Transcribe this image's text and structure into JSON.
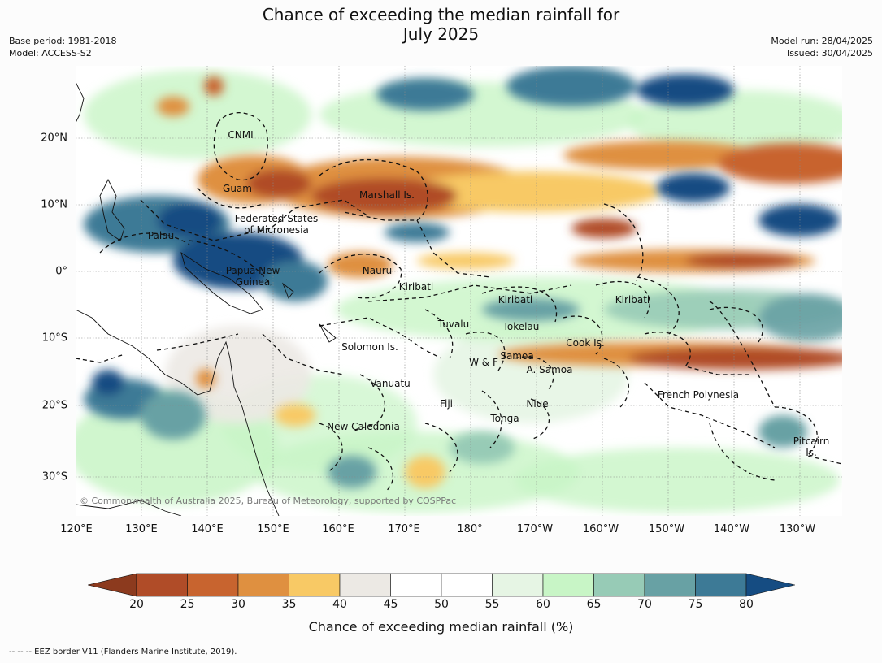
{
  "title_line1": "Chance of exceeding the median rainfall for",
  "title_line2": "July 2025",
  "base_period": "Base period: 1981-2018",
  "model": "Model: ACCESS-S2",
  "model_run": "Model run: 28/04/2025",
  "issued": "Issued: 30/04/2025",
  "copyright": "© Commonwealth of Australia 2025, Bureau of Meteorology, supported by COSPPac",
  "lon_ticks": [
    "120°E",
    "130°E",
    "140°E",
    "150°E",
    "160°E",
    "170°E",
    "180°",
    "170°W",
    "160°W",
    "150°W",
    "140°W",
    "130°W"
  ],
  "lat_ticks": [
    "20°N",
    "10°N",
    "0°",
    "10°S",
    "20°S",
    "30°S"
  ],
  "regions": [
    "CNMI",
    "Guam",
    "Marshall Is.",
    "Federated States\nof Micronesia",
    "Palau",
    "Papua New\nGuinea",
    "Nauru",
    "Kiribati",
    "Kiribati",
    "Kiribati",
    "Tuvalu",
    "Tokelau",
    "Cook Is.",
    "Solomon Is.",
    "Samoa",
    "W & F",
    "A. Samoa",
    "Vanuatu",
    "Fiji",
    "Niue",
    "French Polynesia",
    "Tonga",
    "New Caledonia",
    "Pitcairn\nIs."
  ],
  "colorbar": {
    "tick_labels": [
      "20",
      "25",
      "30",
      "35",
      "40",
      "45",
      "50",
      "55",
      "60",
      "65",
      "70",
      "75",
      "80"
    ],
    "colors": [
      "#8c3a1e",
      "#b04c28",
      "#c8642f",
      "#df9040",
      "#f8c965",
      "#ece9e4",
      "#ffffff",
      "#ffffff",
      "#e6f5e4",
      "#c8f5c6",
      "#97cbb6",
      "#68a1a4",
      "#3d7a96",
      "#154c82"
    ],
    "label": "Chance of exceeding median rainfall (%)"
  },
  "footer": "--  --  -- EEZ border V11 (Flanders Marine Institute, 2019)."
}
